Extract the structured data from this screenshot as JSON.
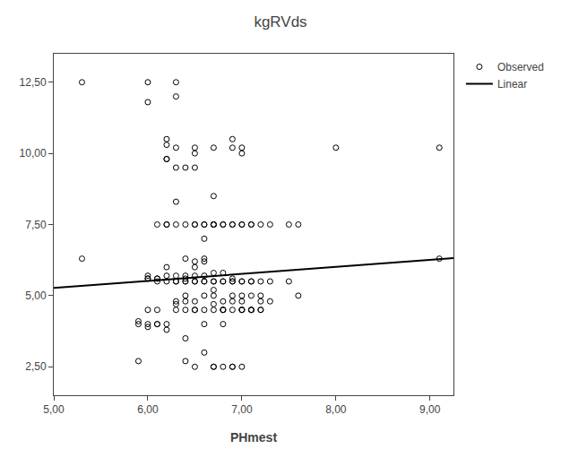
{
  "chart_data": {
    "type": "scatter",
    "title": "kgRVds",
    "xlabel": "PHmest",
    "xlim": [
      5.0,
      9.25
    ],
    "ylim": [
      1.5,
      13.5
    ],
    "xticks": [
      {
        "value": 5.0,
        "label": "5,00"
      },
      {
        "value": 6.0,
        "label": "6,00"
      },
      {
        "value": 7.0,
        "label": "7,00"
      },
      {
        "value": 8.0,
        "label": "8,00"
      },
      {
        "value": 9.0,
        "label": "9,00"
      }
    ],
    "yticks": [
      {
        "value": 2.5,
        "label": "2,50"
      },
      {
        "value": 5.0,
        "label": "5,00"
      },
      {
        "value": 7.5,
        "label": "7,50"
      },
      {
        "value": 10.0,
        "label": "10,00"
      },
      {
        "value": 12.5,
        "label": "12,50"
      }
    ],
    "grid": false,
    "legend": "right",
    "series": [
      {
        "name": "Observed",
        "type": "scatter",
        "marker": "open circle",
        "color": "#000000",
        "x": [
          5.3,
          5.3,
          5.9,
          5.9,
          5.9,
          6.0,
          6.0,
          6.0,
          6.0,
          6.0,
          6.0,
          6.0,
          6.0,
          6.1,
          6.1,
          6.1,
          6.1,
          6.1,
          6.1,
          6.1,
          6.2,
          6.2,
          6.2,
          6.2,
          6.2,
          6.2,
          6.2,
          6.2,
          6.2,
          6.2,
          6.2,
          6.3,
          6.3,
          6.3,
          6.3,
          6.3,
          6.3,
          6.3,
          6.3,
          6.3,
          6.3,
          6.3,
          6.3,
          6.4,
          6.4,
          6.4,
          6.4,
          6.4,
          6.4,
          6.4,
          6.4,
          6.4,
          6.4,
          6.4,
          6.4,
          6.5,
          6.5,
          6.5,
          6.5,
          6.5,
          6.5,
          6.5,
          6.5,
          6.5,
          6.5,
          6.5,
          6.5,
          6.5,
          6.5,
          6.6,
          6.6,
          6.6,
          6.6,
          6.6,
          6.6,
          6.6,
          6.6,
          6.6,
          6.6,
          6.6,
          6.6,
          6.7,
          6.7,
          6.7,
          6.7,
          6.7,
          6.7,
          6.7,
          6.7,
          6.7,
          6.7,
          6.7,
          6.7,
          6.7,
          6.7,
          6.8,
          6.8,
          6.8,
          6.8,
          6.8,
          6.8,
          6.8,
          6.8,
          6.8,
          6.8,
          6.8,
          6.9,
          6.9,
          6.9,
          6.9,
          6.9,
          6.9,
          6.9,
          6.9,
          6.9,
          6.9,
          6.9,
          6.9,
          7.0,
          7.0,
          7.0,
          7.0,
          7.0,
          7.0,
          7.0,
          7.0,
          7.0,
          7.0,
          7.0,
          7.0,
          7.1,
          7.1,
          7.1,
          7.1,
          7.1,
          7.1,
          7.1,
          7.1,
          7.2,
          7.2,
          7.2,
          7.2,
          7.2,
          7.2,
          7.3,
          7.3,
          7.3,
          7.5,
          7.5,
          7.6,
          7.6,
          8.0,
          9.1,
          9.1
        ],
        "values": [
          12.5,
          6.3,
          4.0,
          4.1,
          2.7,
          12.5,
          11.8,
          5.6,
          5.6,
          5.7,
          4.5,
          4.0,
          3.9,
          7.5,
          5.6,
          5.6,
          5.5,
          4.5,
          4.0,
          4.0,
          10.3,
          10.5,
          9.8,
          9.8,
          7.5,
          7.5,
          6.0,
          5.7,
          5.5,
          4.0,
          3.8,
          12.5,
          12.0,
          10.2,
          9.5,
          8.3,
          7.5,
          5.7,
          5.5,
          5.5,
          4.8,
          4.7,
          4.5,
          9.5,
          7.5,
          6.3,
          5.7,
          5.6,
          5.5,
          5.5,
          5.0,
          4.8,
          4.5,
          3.5,
          2.7,
          10.2,
          10.0,
          9.5,
          7.5,
          7.5,
          6.2,
          6.0,
          5.7,
          5.5,
          5.5,
          4.8,
          4.5,
          4.5,
          2.5,
          7.5,
          7.5,
          7.0,
          6.3,
          6.2,
          5.7,
          5.5,
          5.5,
          5.0,
          4.5,
          4.0,
          3.0,
          10.2,
          8.5,
          7.5,
          7.5,
          7.5,
          5.8,
          5.5,
          5.5,
          5.2,
          5.0,
          4.7,
          4.5,
          2.5,
          2.5,
          7.5,
          7.5,
          5.8,
          5.5,
          5.5,
          4.8,
          4.5,
          4.5,
          4.5,
          4.0,
          2.5,
          10.5,
          10.2,
          7.5,
          7.5,
          5.6,
          5.5,
          5.5,
          5.0,
          4.8,
          4.5,
          2.5,
          2.5,
          10.2,
          10.0,
          7.5,
          7.5,
          5.5,
          5.5,
          5.0,
          4.8,
          4.5,
          4.5,
          4.5,
          2.5,
          7.5,
          7.5,
          5.5,
          5.5,
          5.0,
          4.5,
          4.5,
          4.5,
          7.5,
          5.5,
          5.0,
          4.8,
          4.5,
          4.5,
          7.5,
          5.5,
          4.8,
          7.5,
          5.5,
          7.5,
          5.0,
          10.2,
          10.2,
          6.3
        ]
      },
      {
        "name": "Linear",
        "type": "line",
        "line_style": "solid",
        "color": "#000000",
        "x": [
          5.0,
          9.25
        ],
        "values": [
          5.27,
          6.31625
        ]
      }
    ]
  }
}
